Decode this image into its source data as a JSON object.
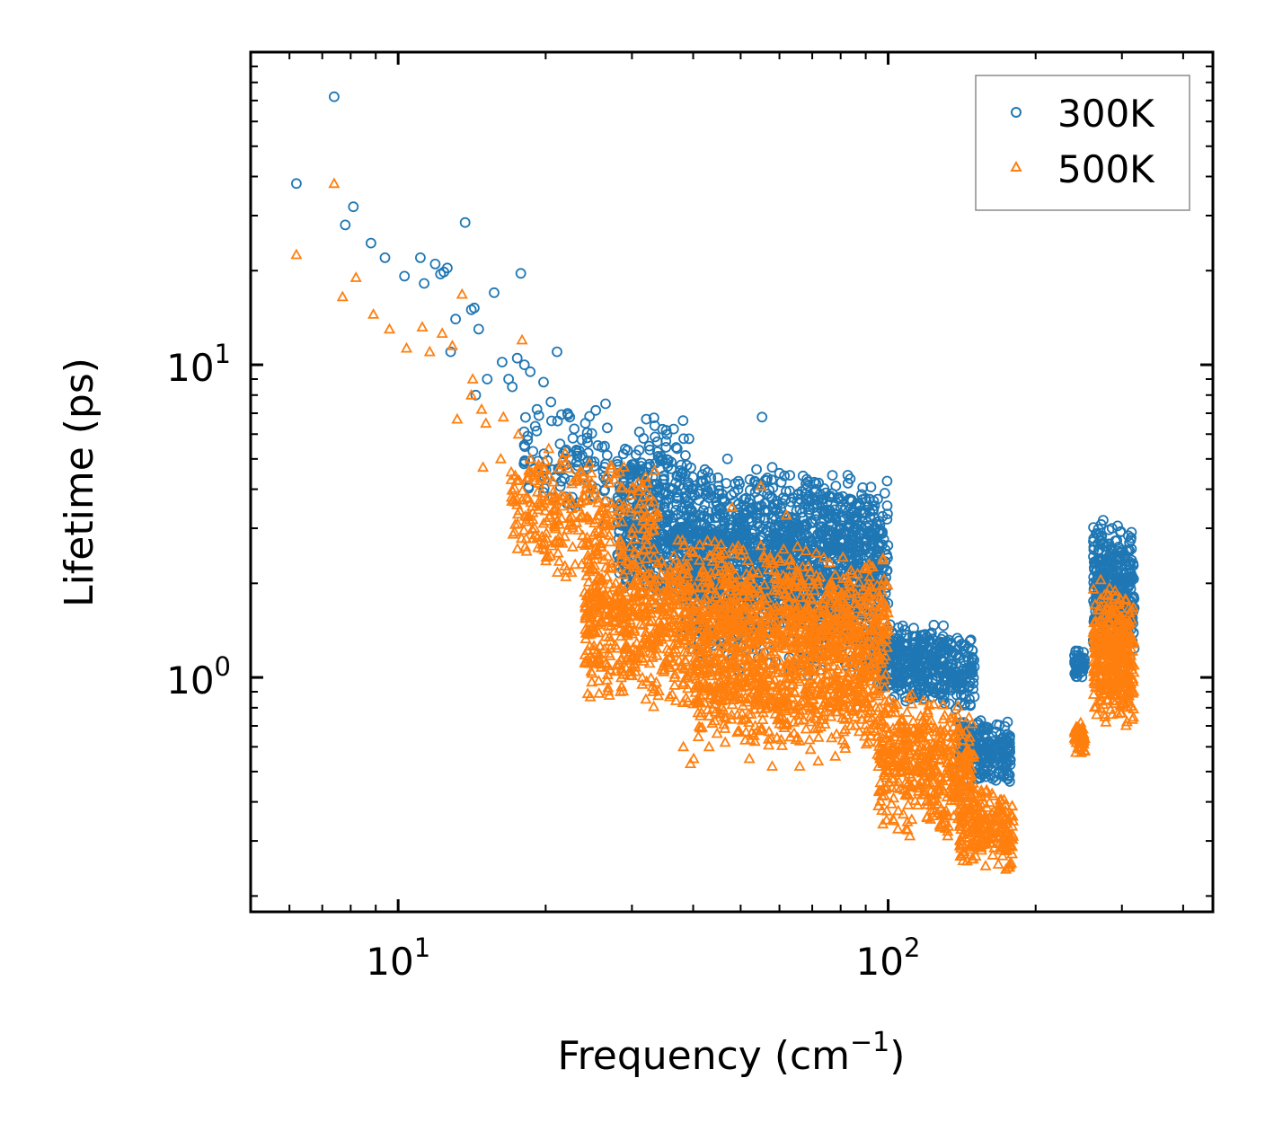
{
  "chart_data": {
    "type": "scatter",
    "xscale": "log",
    "yscale": "log",
    "xlabel": "Frequency (cm",
    "xlabel_sup": "−1",
    "xlabel_end": ")",
    "ylabel": "Lifetime (ps)",
    "xlim": [
      5.0,
      460
    ],
    "ylim": [
      0.178,
      100
    ],
    "x_ticks": [
      {
        "value": 10,
        "base": "10",
        "exp": "1"
      },
      {
        "value": 100,
        "base": "10",
        "exp": "2"
      }
    ],
    "y_ticks": [
      {
        "value": 1,
        "base": "10",
        "exp": "0"
      },
      {
        "value": 10,
        "base": "10",
        "exp": "1"
      }
    ],
    "legend_position": "top-right",
    "series": [
      {
        "name": "300K",
        "marker": "circle",
        "color": "#1f77b4",
        "points": [
          [
            6.2,
            38
          ],
          [
            7.4,
            72
          ],
          [
            7.8,
            28
          ],
          [
            8.1,
            32
          ],
          [
            8.8,
            24.5
          ],
          [
            9.4,
            22
          ],
          [
            10.3,
            19.2
          ],
          [
            11.1,
            22
          ],
          [
            11.3,
            18.2
          ],
          [
            11.9,
            21
          ],
          [
            12.2,
            19.5
          ],
          [
            12.4,
            19.8
          ],
          [
            12.6,
            20.4
          ],
          [
            12.8,
            11
          ],
          [
            13.1,
            14
          ],
          [
            13.7,
            28.5
          ],
          [
            14.1,
            15
          ],
          [
            14.3,
            15.2
          ],
          [
            14.6,
            13
          ],
          [
            15.7,
            17
          ],
          [
            17.8,
            19.6
          ],
          [
            14.4,
            8
          ],
          [
            15.2,
            9
          ],
          [
            16.3,
            10.2
          ],
          [
            16.8,
            9
          ],
          [
            17.1,
            8.5
          ],
          [
            17.5,
            10.5
          ],
          [
            18.1,
            10
          ],
          [
            18.6,
            9.5
          ],
          [
            19.2,
            7.2
          ],
          [
            19.8,
            8.8
          ],
          [
            20.5,
            7.6
          ],
          [
            21.1,
            11
          ],
          [
            22.4,
            6.8
          ],
          [
            24.1,
            6.5
          ],
          [
            26.5,
            7.5
          ],
          [
            32.1,
            6.7
          ],
          [
            35.2,
            5.7
          ],
          [
            55.3,
            6.8
          ],
          [
            58,
            4.7
          ],
          [
            47,
            5
          ],
          [
            60,
            4.5
          ]
        ],
        "clusters": [
          {
            "x": [
              18,
              40
            ],
            "y": [
              3.0,
              7.5
            ],
            "n": 200
          },
          {
            "x": [
              28,
              100
            ],
            "y": [
              1.6,
              4.8
            ],
            "n": 1400
          },
          {
            "x": [
              38,
              95
            ],
            "y": [
              1.0,
              3.2
            ],
            "n": 600
          },
          {
            "x": [
              95,
              150
            ],
            "y": [
              0.8,
              1.5
            ],
            "n": 450
          },
          {
            "x": [
              140,
              178
            ],
            "y": [
              0.45,
              0.75
            ],
            "n": 220
          },
          {
            "x": [
              240,
              252
            ],
            "y": [
              0.98,
              1.25
            ],
            "n": 60
          },
          {
            "x": [
              262,
              318
            ],
            "y": [
              1.1,
              3.3
            ],
            "n": 380
          }
        ]
      },
      {
        "name": "500K",
        "marker": "triangle",
        "color": "#ff7f0e",
        "points": [
          [
            6.2,
            22.5
          ],
          [
            7.4,
            38
          ],
          [
            7.7,
            16.5
          ],
          [
            8.2,
            19
          ],
          [
            8.9,
            14.5
          ],
          [
            9.6,
            13
          ],
          [
            10.4,
            11.3
          ],
          [
            11.2,
            13.2
          ],
          [
            11.6,
            11
          ],
          [
            12.3,
            12.6
          ],
          [
            12.9,
            11.5
          ],
          [
            13.5,
            16.8
          ],
          [
            14.1,
            8
          ],
          [
            14.2,
            9
          ],
          [
            14.8,
            7.2
          ],
          [
            15.1,
            6.5
          ],
          [
            16.4,
            6.8
          ],
          [
            17.6,
            6
          ],
          [
            17.9,
            12
          ],
          [
            13.2,
            6.7
          ],
          [
            14.9,
            4.7
          ],
          [
            16.2,
            5
          ],
          [
            18.6,
            5
          ],
          [
            19.5,
            3.6
          ],
          [
            20.4,
            3.3
          ],
          [
            21.2,
            2.5
          ],
          [
            22,
            2.1
          ],
          [
            23.7,
            2.3
          ],
          [
            24.1,
            1.55
          ],
          [
            26.5,
            1.35
          ],
          [
            29.3,
            1.15
          ],
          [
            31.5,
            0.95
          ],
          [
            33.1,
            0.9
          ],
          [
            38.2,
            0.6
          ],
          [
            39.5,
            0.53
          ],
          [
            40.1,
            0.55
          ],
          [
            43.1,
            0.6
          ],
          [
            46.5,
            0.62
          ],
          [
            52.1,
            0.55
          ],
          [
            58,
            0.52
          ],
          [
            55,
            4.1
          ],
          [
            48,
            3.5
          ],
          [
            62,
            3.3
          ],
          [
            66,
            0.52
          ],
          [
            72,
            0.54
          ],
          [
            78,
            0.56
          ]
        ],
        "clusters": [
          {
            "x": [
              17,
              34
            ],
            "y": [
              2.0,
              5.5
            ],
            "n": 300
          },
          {
            "x": [
              24,
              100
            ],
            "y": [
              0.75,
              2.8
            ],
            "n": 1600
          },
          {
            "x": [
              40,
              95
            ],
            "y": [
              0.58,
              1.2
            ],
            "n": 400
          },
          {
            "x": [
              95,
              150
            ],
            "y": [
              0.3,
              0.9
            ],
            "n": 500
          },
          {
            "x": [
              140,
              180
            ],
            "y": [
              0.24,
              0.45
            ],
            "n": 220
          },
          {
            "x": [
              240,
              252
            ],
            "y": [
              0.56,
              0.73
            ],
            "n": 60
          },
          {
            "x": [
              262,
              318
            ],
            "y": [
              0.68,
              2.0
            ],
            "n": 380
          }
        ]
      }
    ]
  }
}
